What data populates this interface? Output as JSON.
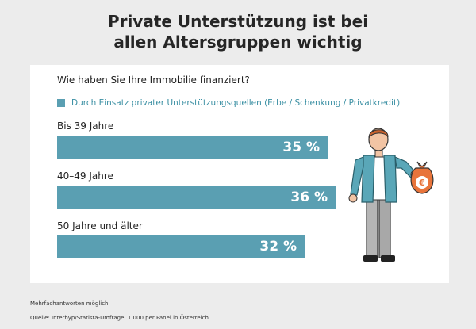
{
  "title_line1": "Private Unterstützung ist bei",
  "title_line2": "allen Altersgruppen wichtig",
  "question": "Wie haben Sie Ihre Immobilie finanziert?",
  "legend_label": "Durch Einsatz privater Unterstützungsquellen (Erbe / Schenkung / Privatkredit)",
  "footnote": "Mehrfachantworten möglich",
  "source": "Quelle: Interhyp/Statista-Umfrage, 1.000 per Panel in Österreich",
  "money_bag_symbol": "€",
  "colors": {
    "bar": "#5a9fb2",
    "legend_text": "#3a8fa3",
    "card": "#ffffff",
    "background": "#ececec"
  },
  "chart_data": {
    "type": "bar",
    "orientation": "horizontal",
    "title": "Private Unterstützung ist bei allen Altersgruppen wichtig",
    "subtitle": "Wie haben Sie Ihre Immobilie finanziert?",
    "series": [
      {
        "name": "Durch Einsatz privater Unterstützungsquellen (Erbe / Schenkung / Privatkredit)",
        "values": [
          35,
          36,
          32
        ]
      }
    ],
    "categories": [
      "Bis 39 Jahre",
      "40–49 Jahre",
      "50 Jahre und älter"
    ],
    "values": [
      35,
      36,
      32
    ],
    "value_labels": [
      "35 %",
      "36 %",
      "32 %"
    ],
    "unit": "%",
    "xlim": [
      0,
      40
    ]
  }
}
